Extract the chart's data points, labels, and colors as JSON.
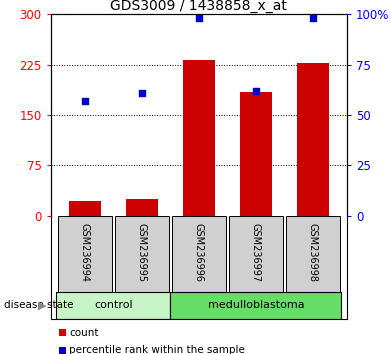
{
  "title": "GDS3009 / 1438858_x_at",
  "samples": [
    "GSM236994",
    "GSM236995",
    "GSM236996",
    "GSM236997",
    "GSM236998"
  ],
  "counts": [
    22,
    25,
    232,
    185,
    228
  ],
  "percentiles": [
    57,
    61,
    98,
    62,
    98
  ],
  "ylim_left": [
    0,
    300
  ],
  "ylim_right": [
    0,
    100
  ],
  "yticks_left": [
    0,
    75,
    150,
    225,
    300
  ],
  "ytick_labels_left": [
    "0",
    "75",
    "150",
    "225",
    "300"
  ],
  "yticks_right": [
    0,
    25,
    50,
    75,
    100
  ],
  "ytick_labels_right": [
    "0",
    "25",
    "50",
    "75",
    "100%"
  ],
  "groups": [
    {
      "label": "control",
      "indices": [
        0,
        1
      ],
      "color": "#c8f5c8"
    },
    {
      "label": "medulloblastoma",
      "indices": [
        2,
        3,
        4
      ],
      "color": "#66dd66"
    }
  ],
  "bar_color": "#cc0000",
  "dot_color": "#0000cc",
  "bar_width": 0.55,
  "tick_label_area_color": "#d0d0d0",
  "disease_state_label": "disease state",
  "legend_count_label": "count",
  "legend_pct_label": "percentile rank within the sample"
}
